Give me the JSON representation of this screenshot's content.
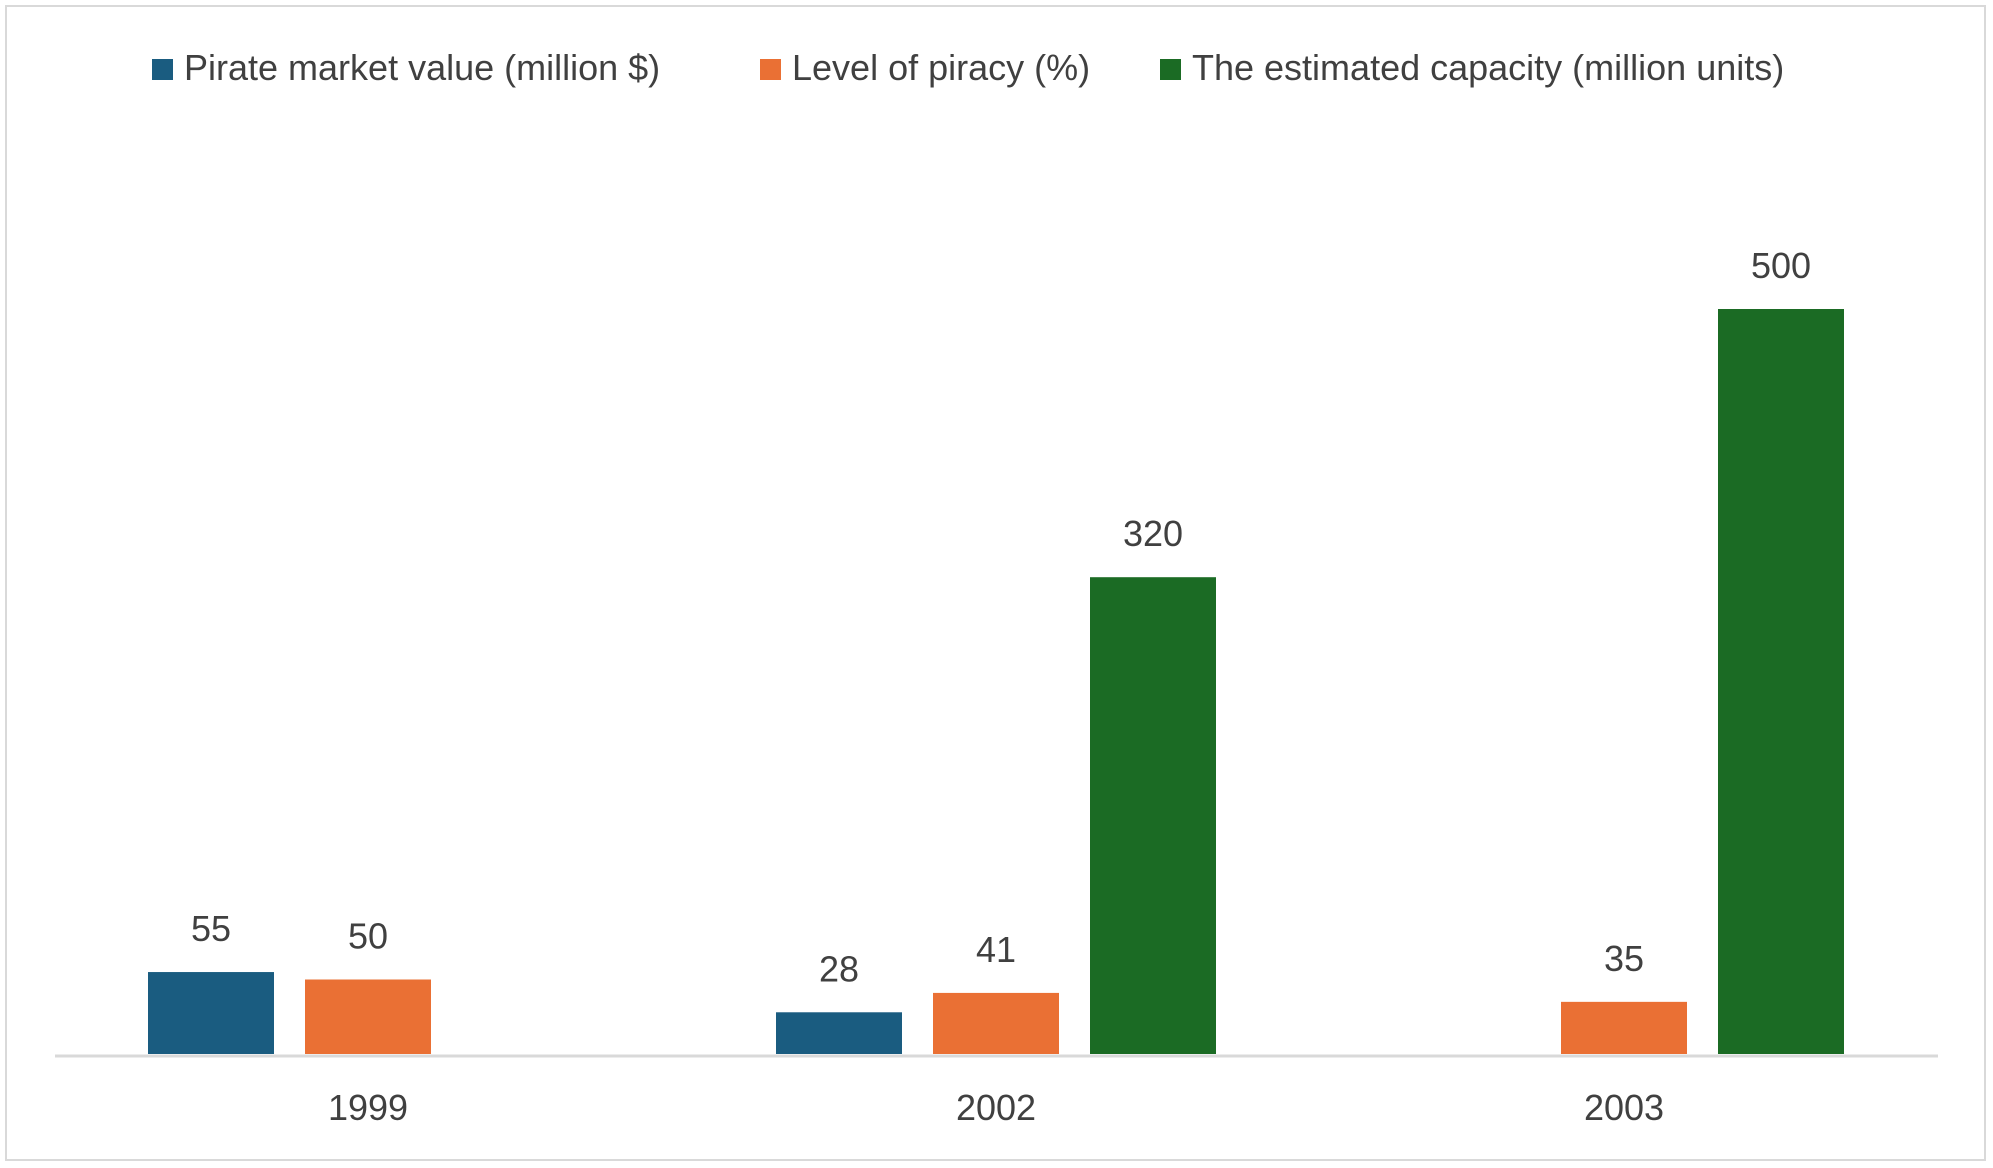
{
  "chart_data": {
    "type": "bar",
    "categories": [
      "1999",
      "2002",
      "2003"
    ],
    "series": [
      {
        "name": "Pirate market value (million $)",
        "color": "#1a5c80",
        "values": [
          55,
          28,
          null
        ]
      },
      {
        "name": "Level of piracy (%)",
        "color": "#ea7034",
        "values": [
          50,
          41,
          35
        ]
      },
      {
        "name": "The estimated capacity (million units)",
        "color": "#1b6b24",
        "values": [
          null,
          320,
          500
        ]
      }
    ],
    "ylim": [
      0,
      500
    ],
    "grid": false,
    "legend_position": "top"
  }
}
